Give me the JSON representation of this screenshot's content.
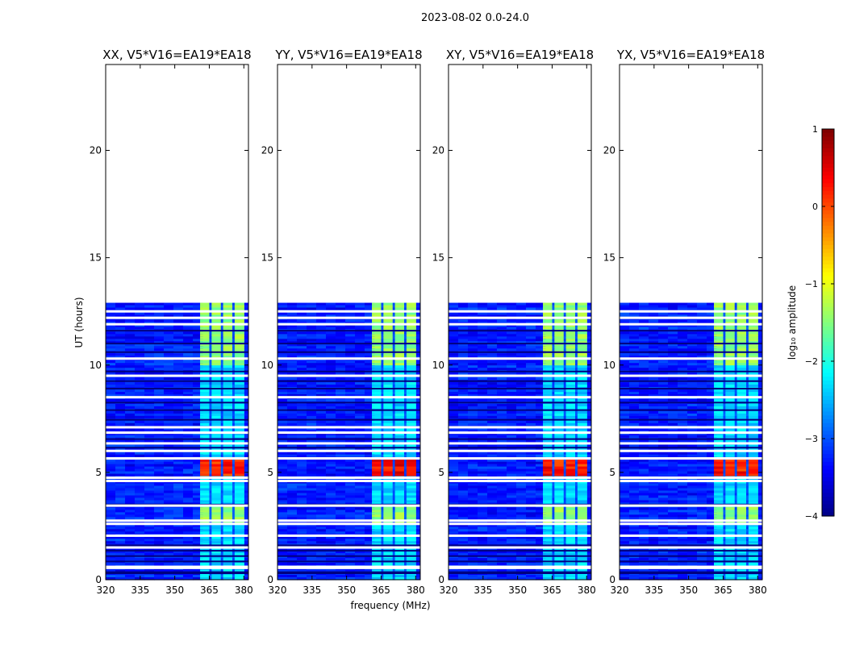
{
  "chart_data": {
    "type": "heatmap",
    "suptitle": "2023-08-02 0.0-24.0",
    "xlabel": "frequency (MHz)",
    "ylabel": "UT (hours)",
    "xlim": [
      320,
      382
    ],
    "ylim": [
      0,
      24
    ],
    "x_ticks": [
      320,
      335,
      350,
      365,
      380
    ],
    "y_ticks": [
      0,
      5,
      10,
      15,
      20
    ],
    "data_extent_hours": [
      0,
      12.9
    ],
    "rfi_band_mhz": [
      361,
      380
    ],
    "rfi_subbands_mhz": [
      [
        361,
        365
      ],
      [
        366,
        370
      ],
      [
        371,
        375
      ],
      [
        376,
        380
      ]
    ],
    "colorbar": {
      "label": "log₁₀ amplitude",
      "range": [
        -4,
        1
      ],
      "ticks": [
        1,
        0,
        -1,
        -2,
        -3,
        -4
      ],
      "tick_labels": [
        "1",
        "0",
        "−1",
        "−2",
        "−3",
        "−4"
      ]
    },
    "panels": [
      {
        "title": "XX, V5*V16=EA19*EA18",
        "polarization": "XX",
        "peak_log10_amp": 0.4
      },
      {
        "title": "YY, V5*V16=EA19*EA18",
        "polarization": "YY",
        "peak_log10_amp": 0.6
      },
      {
        "title": "XY, V5*V16=EA19*EA18",
        "polarization": "XY",
        "peak_log10_amp": 0.5
      },
      {
        "title": "YX, V5*V16=EA19*EA18",
        "polarization": "YX",
        "peak_log10_amp": 0.5
      }
    ]
  },
  "colors": {
    "background": "#ffffff",
    "axis": "#000000",
    "colormap": "jet"
  }
}
